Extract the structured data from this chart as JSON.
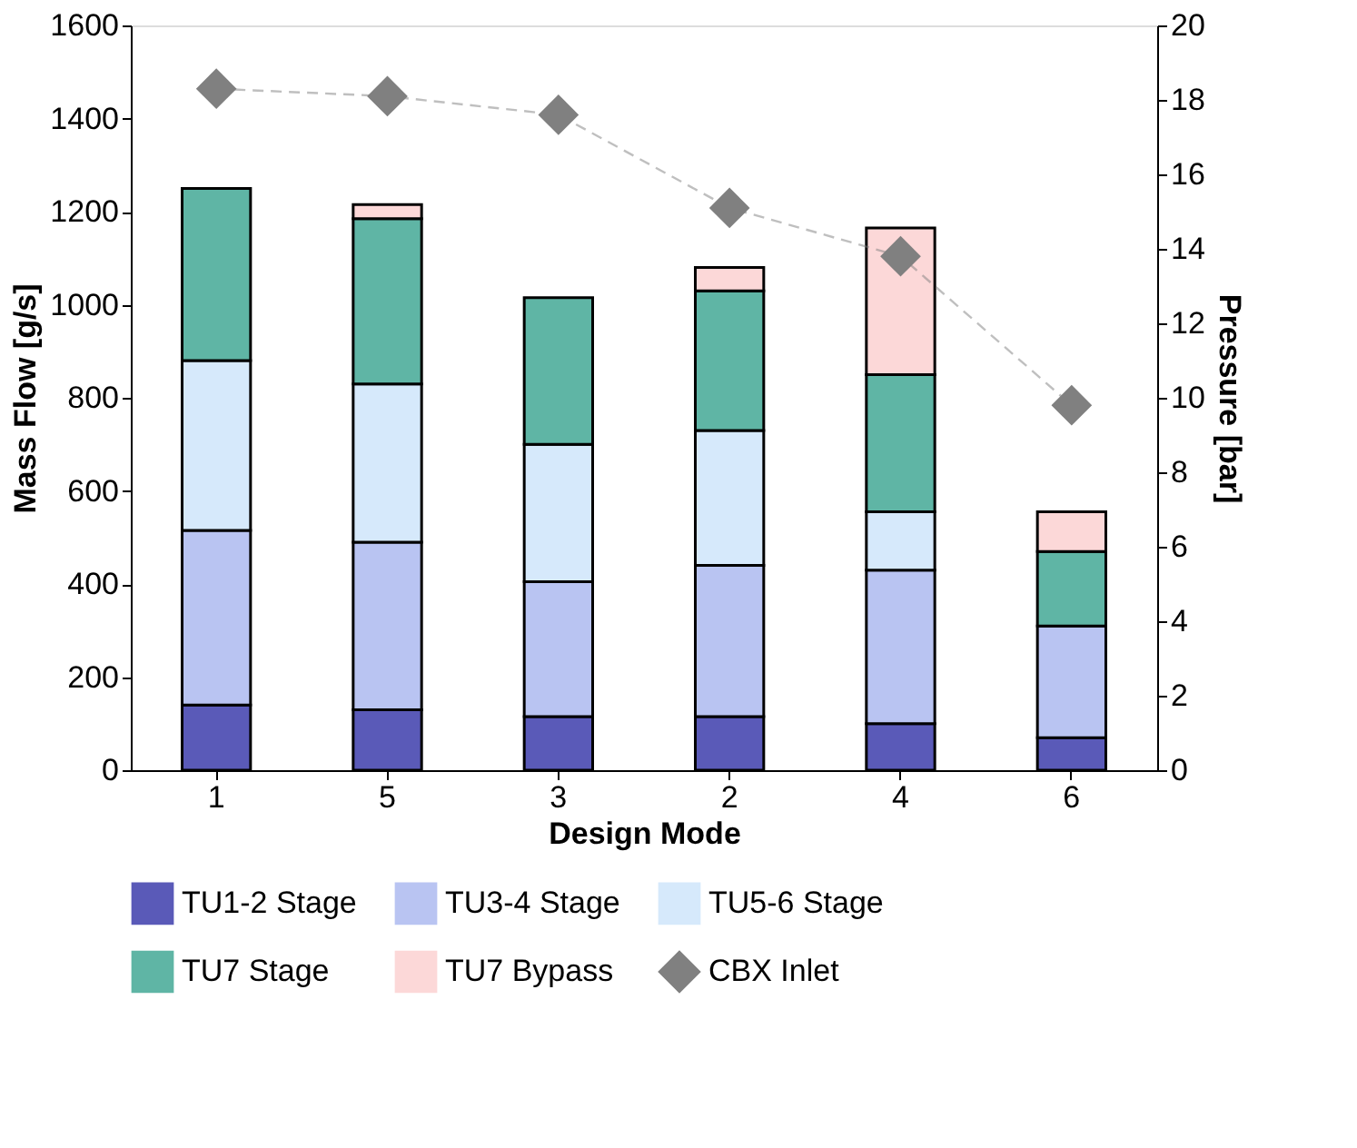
{
  "chart_data": {
    "type": "bar",
    "stacked": true,
    "xlabel": "Design Mode",
    "ylabel": "Mass Flow [g/s]",
    "y2label": "Pressure [bar]",
    "categories": [
      "1",
      "5",
      "3",
      "2",
      "4",
      "6"
    ],
    "series": [
      {
        "name": "TU1-2 Stage",
        "color": "#5a5ab8",
        "values": [
          140,
          130,
          115,
          115,
          100,
          70
        ]
      },
      {
        "name": "TU3-4 Stage",
        "color": "#b9c4f2",
        "values": [
          375,
          360,
          290,
          325,
          330,
          240
        ]
      },
      {
        "name": "TU5-6 Stage",
        "color": "#d6e9fb",
        "values": [
          365,
          340,
          295,
          290,
          125,
          null
        ]
      },
      {
        "name": "TU7 Stage",
        "color": "#5fb5a5",
        "values": [
          370,
          355,
          315,
          300,
          295,
          160
        ]
      },
      {
        "name": "TU7 Bypass",
        "color": "#fcd8d8",
        "values": [
          null,
          30,
          null,
          50,
          315,
          85
        ]
      },
      {
        "name": "CBX Inlet",
        "type": "line",
        "axis": "y2",
        "color": "#808080",
        "marker": "diamond",
        "line_style": "dashed",
        "values": [
          18.3,
          18.1,
          17.6,
          15.1,
          13.8,
          9.8
        ]
      }
    ],
    "ylim": [
      0,
      1600
    ],
    "yticks": [
      0,
      200,
      400,
      600,
      800,
      1000,
      1200,
      1400,
      1600
    ],
    "y2lim": [
      0,
      20
    ],
    "y2ticks": [
      0,
      2,
      4,
      6,
      8,
      10,
      12,
      14,
      16,
      18,
      20
    ],
    "grid": false,
    "legend": "bottom"
  }
}
